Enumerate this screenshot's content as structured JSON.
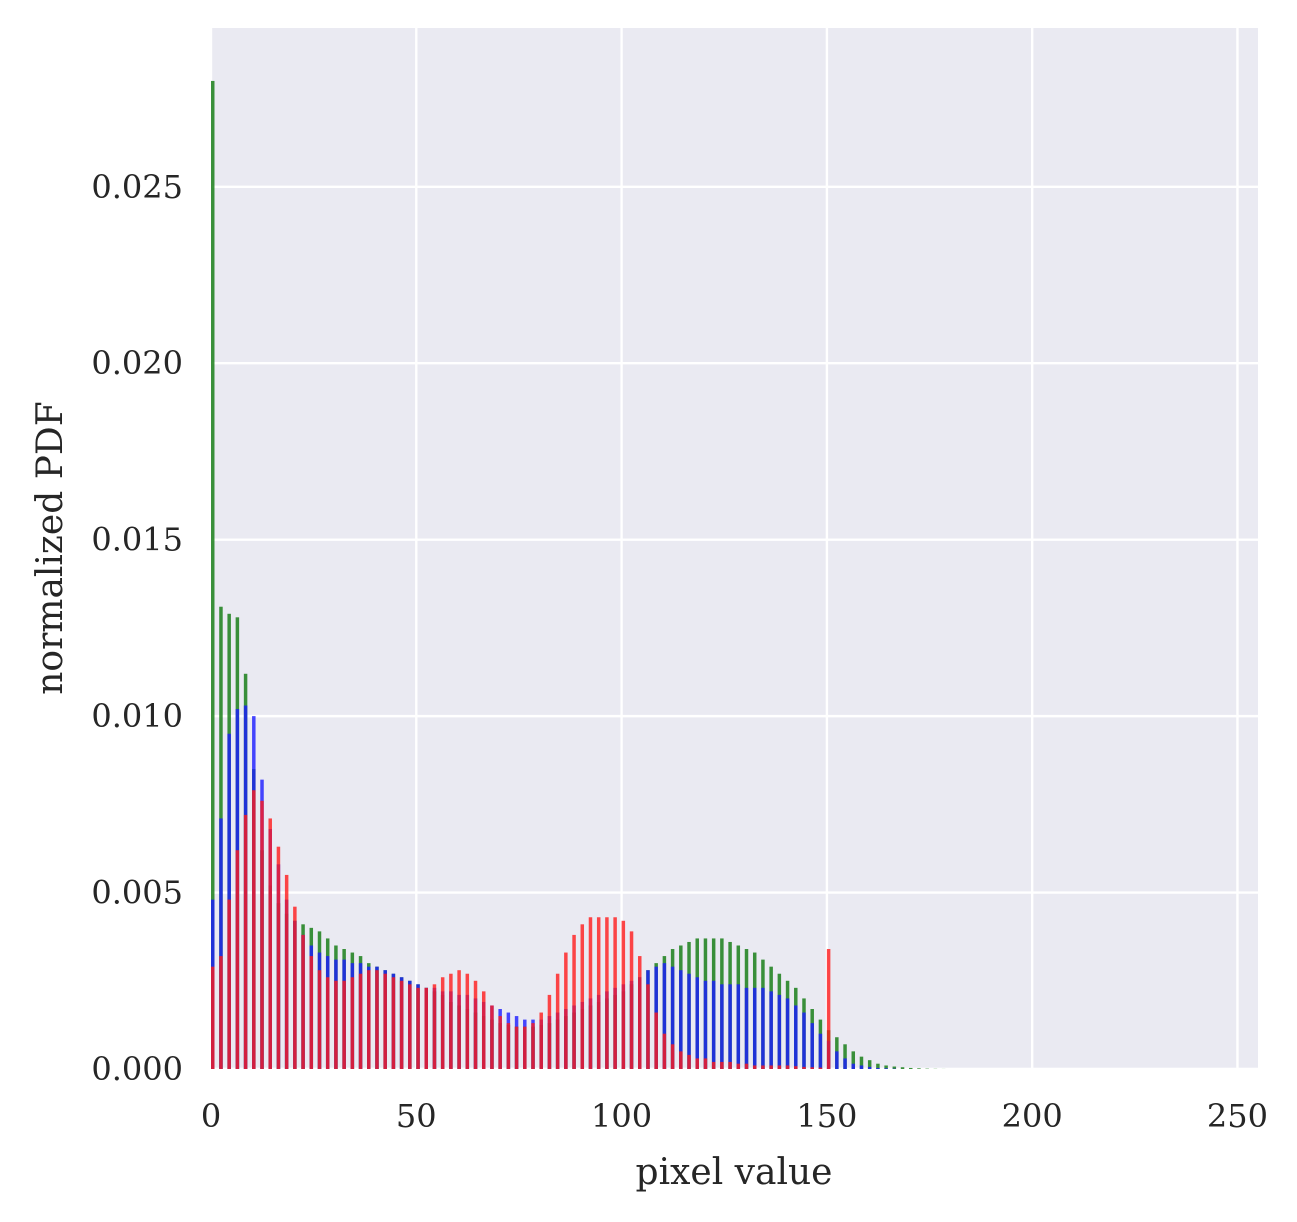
{
  "chart_data": {
    "type": "bar",
    "chart_subtype": "overlaid histograms",
    "title": "",
    "xlabel": "pixel value",
    "ylabel": "normalized PDF",
    "xlim": [
      0,
      255
    ],
    "ylim": [
      0,
      0.0295
    ],
    "xticks": [
      0,
      50,
      100,
      150,
      200,
      250
    ],
    "xtick_labels": [
      "0",
      "50",
      "100",
      "150",
      "200",
      "250"
    ],
    "yticks": [
      0,
      0.005,
      0.01,
      0.015,
      0.02,
      0.025
    ],
    "ytick_labels": [
      "0.000",
      "0.005",
      "0.010",
      "0.015",
      "0.020",
      "0.025"
    ],
    "grid": true,
    "background_color": "#eaeaf2",
    "legend": "none",
    "bin_width": 1,
    "bins": "integer pixel values 0–255; every 2nd bin shown",
    "series": [
      {
        "color": "#1a7f1a",
        "alpha": 0.85,
        "x": [
          0,
          2,
          4,
          6,
          8,
          10,
          12,
          14,
          16,
          18,
          20,
          22,
          24,
          26,
          28,
          30,
          32,
          34,
          36,
          38,
          40,
          42,
          44,
          46,
          48,
          50,
          52,
          54,
          56,
          58,
          60,
          62,
          64,
          66,
          68,
          70,
          72,
          74,
          76,
          78,
          80,
          82,
          84,
          86,
          88,
          90,
          92,
          94,
          96,
          98,
          100,
          102,
          104,
          106,
          108,
          110,
          112,
          114,
          116,
          118,
          120,
          122,
          124,
          126,
          128,
          130,
          132,
          134,
          136,
          138,
          140,
          142,
          144,
          146,
          148,
          150,
          152,
          154,
          156,
          158,
          160,
          162,
          164,
          166,
          168,
          170,
          172,
          174,
          176,
          178
        ],
        "values": [
          0.028,
          0.0131,
          0.0129,
          0.0128,
          0.0112,
          0.0085,
          0.0062,
          0.0052,
          0.0047,
          0.0044,
          0.0042,
          0.0041,
          0.004,
          0.0039,
          0.0037,
          0.0035,
          0.0034,
          0.0033,
          0.0032,
          0.003,
          0.0029,
          0.0028,
          0.0027,
          0.0026,
          0.0025,
          0.0024,
          0.0023,
          0.0022,
          0.0021,
          0.0019,
          0.0018,
          0.0017,
          0.0016,
          0.0015,
          0.0014,
          0.0013,
          0.00125,
          0.0012,
          0.0012,
          0.0012,
          0.00125,
          0.0013,
          0.0014,
          0.0015,
          0.0016,
          0.0017,
          0.0018,
          0.0019,
          0.002,
          0.0021,
          0.0022,
          0.0024,
          0.0026,
          0.0028,
          0.003,
          0.0032,
          0.0034,
          0.0035,
          0.0036,
          0.0037,
          0.0037,
          0.0037,
          0.0037,
          0.0036,
          0.0035,
          0.0034,
          0.0033,
          0.0031,
          0.0029,
          0.0027,
          0.0025,
          0.0023,
          0.002,
          0.0017,
          0.0014,
          0.0011,
          0.0009,
          0.0007,
          0.0005,
          0.00035,
          0.00025,
          0.00015,
          0.0001,
          7e-05,
          5e-05,
          3e-05,
          2e-05,
          1e-05,
          5e-06,
          2e-06
        ]
      },
      {
        "color": "#1a1aff",
        "alpha": 0.8,
        "x": [
          0,
          2,
          4,
          6,
          8,
          10,
          12,
          14,
          16,
          18,
          20,
          22,
          24,
          26,
          28,
          30,
          32,
          34,
          36,
          38,
          40,
          42,
          44,
          46,
          48,
          50,
          52,
          54,
          56,
          58,
          60,
          62,
          64,
          66,
          68,
          70,
          72,
          74,
          76,
          78,
          80,
          82,
          84,
          86,
          88,
          90,
          92,
          94,
          96,
          98,
          100,
          102,
          104,
          106,
          108,
          110,
          112,
          114,
          116,
          118,
          120,
          122,
          124,
          126,
          128,
          130,
          132,
          134,
          136,
          138,
          140,
          142,
          144,
          146,
          148,
          150,
          152,
          154,
          156,
          158,
          160,
          162,
          164,
          166
        ],
        "values": [
          0.0048,
          0.0071,
          0.0095,
          0.0102,
          0.0103,
          0.01,
          0.0082,
          0.0068,
          0.0058,
          0.0048,
          0.0042,
          0.0038,
          0.0035,
          0.0033,
          0.0032,
          0.0031,
          0.0031,
          0.003,
          0.003,
          0.0029,
          0.0029,
          0.0028,
          0.0027,
          0.0026,
          0.0025,
          0.0024,
          0.0023,
          0.0023,
          0.0022,
          0.0022,
          0.0021,
          0.0021,
          0.002,
          0.0019,
          0.0018,
          0.0017,
          0.0016,
          0.0015,
          0.0014,
          0.0014,
          0.0014,
          0.0015,
          0.0016,
          0.0017,
          0.0018,
          0.0019,
          0.002,
          0.0021,
          0.0022,
          0.0023,
          0.0024,
          0.0025,
          0.0026,
          0.0028,
          0.0029,
          0.003,
          0.0029,
          0.0028,
          0.0027,
          0.0026,
          0.0025,
          0.0025,
          0.0024,
          0.0024,
          0.0024,
          0.0023,
          0.0023,
          0.0023,
          0.0022,
          0.0021,
          0.002,
          0.0018,
          0.0016,
          0.0013,
          0.001,
          0.0008,
          0.0005,
          0.0003,
          0.00015,
          0.0001,
          6e-05,
          3e-05,
          2e-05,
          1e-05
        ]
      },
      {
        "color": "#ff1a1a",
        "alpha": 0.8,
        "x": [
          0,
          2,
          4,
          6,
          8,
          10,
          12,
          14,
          16,
          18,
          20,
          22,
          24,
          26,
          28,
          30,
          32,
          34,
          36,
          38,
          40,
          42,
          44,
          46,
          48,
          50,
          52,
          54,
          56,
          58,
          60,
          62,
          64,
          66,
          68,
          70,
          72,
          74,
          76,
          78,
          80,
          82,
          84,
          86,
          88,
          90,
          92,
          94,
          96,
          98,
          100,
          102,
          104,
          106,
          108,
          110,
          112,
          114,
          116,
          118,
          120,
          122,
          124,
          126,
          128,
          130,
          132,
          134,
          136,
          138,
          140,
          142,
          144,
          146,
          148,
          150
        ],
        "values": [
          0.0029,
          0.0032,
          0.0048,
          0.0062,
          0.0072,
          0.0079,
          0.0076,
          0.0071,
          0.0063,
          0.0055,
          0.0046,
          0.0038,
          0.0032,
          0.0028,
          0.0026,
          0.0025,
          0.0025,
          0.0026,
          0.0027,
          0.0028,
          0.0028,
          0.0027,
          0.0026,
          0.0025,
          0.0024,
          0.0023,
          0.0023,
          0.0024,
          0.0026,
          0.0027,
          0.0028,
          0.0027,
          0.0025,
          0.0022,
          0.0018,
          0.0015,
          0.0013,
          0.0012,
          0.0012,
          0.0013,
          0.0016,
          0.0021,
          0.0027,
          0.0033,
          0.0038,
          0.0041,
          0.0043,
          0.0043,
          0.0043,
          0.0043,
          0.0042,
          0.0039,
          0.0032,
          0.0024,
          0.0016,
          0.001,
          0.0007,
          0.0005,
          0.0004,
          0.0003,
          0.0003,
          0.0002,
          0.0002,
          0.0002,
          0.00015,
          0.00015,
          0.0001,
          0.0001,
          0.0001,
          0.0001,
          0.0001,
          8e-05,
          6e-05,
          5e-05,
          4e-05,
          0.0034
        ]
      }
    ]
  }
}
